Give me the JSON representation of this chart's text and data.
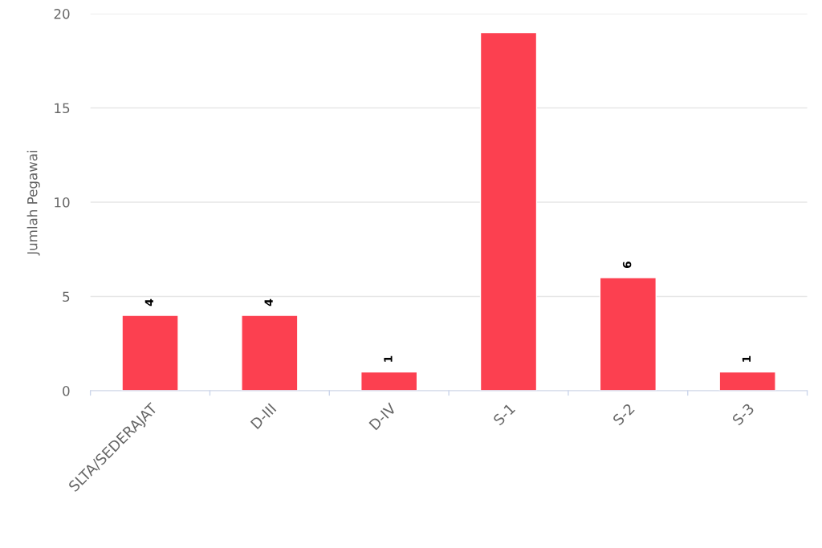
{
  "chart_data": {
    "type": "bar",
    "ylabel": "Jumlah Pegawai",
    "categories": [
      "SLTA/SEDERAJAT",
      "D-III",
      "D-IV",
      "S-1",
      "S-2",
      "S-3"
    ],
    "values": [
      4,
      4,
      1,
      19,
      6,
      1
    ],
    "value_labels": [
      "4",
      "4",
      "1",
      null,
      "6",
      "1"
    ],
    "color": "#fc4050",
    "ylim": [
      0,
      20
    ],
    "yticks": [
      0,
      5,
      10,
      15,
      20
    ],
    "grid": "y"
  }
}
